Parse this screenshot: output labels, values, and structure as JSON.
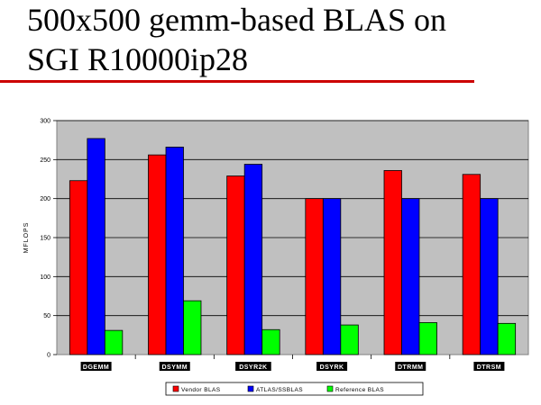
{
  "slide": {
    "title_line1": "500x500 gemm-based BLAS on",
    "title_line2": "SGI  R10000ip28",
    "rule_color": "#cc0000"
  },
  "chart_data": {
    "type": "bar",
    "categories": [
      "DGEMM",
      "DSYMM",
      "DSYR2K",
      "DSYRK",
      "DTRMM",
      "DTRSM"
    ],
    "series": [
      {
        "name": "Vendor BLAS",
        "color": "#ff0000",
        "values": [
          223,
          256,
          229,
          200,
          236,
          231
        ]
      },
      {
        "name": "ATLAS/SSBLAS",
        "color": "#0000ff",
        "values": [
          277,
          266,
          244,
          200,
          200,
          200
        ]
      },
      {
        "name": "Reference BLAS",
        "color": "#00ff00",
        "values": [
          31,
          69,
          32,
          38,
          41,
          40
        ]
      }
    ],
    "ylabel": "MFLOPS",
    "ylim": [
      0,
      300
    ],
    "yticks": [
      "0",
      "50",
      "100",
      "150",
      "200",
      "250",
      "300"
    ],
    "grid": true,
    "plot_background": "#c0c0c0",
    "legend_position": "bottom"
  }
}
